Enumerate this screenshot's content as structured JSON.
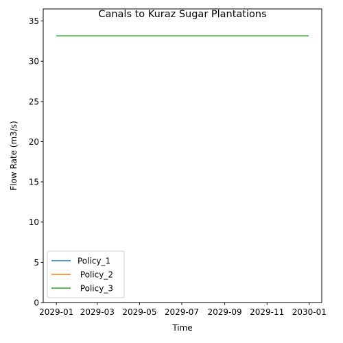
{
  "chart_data": {
    "type": "line",
    "title": "Canals to Kuraz Sugar Plantations",
    "xlabel": "Time",
    "ylabel": "Flow Rate (m3/s)",
    "x": [
      "2029-01-01",
      "2029-12-31"
    ],
    "xlim": [
      "2028-12-13",
      "2030-01-19"
    ],
    "ylim": [
      0,
      36.5
    ],
    "yticks": [
      0,
      5,
      10,
      15,
      20,
      25,
      30,
      35
    ],
    "xticks": [
      {
        "date": "2029-01-01",
        "label": "2029-01"
      },
      {
        "date": "2029-03-01",
        "label": "2029-03"
      },
      {
        "date": "2029-05-01",
        "label": "2029-05"
      },
      {
        "date": "2029-07-01",
        "label": "2029-07"
      },
      {
        "date": "2029-09-01",
        "label": "2029-09"
      },
      {
        "date": "2029-11-01",
        "label": "2029-11"
      },
      {
        "date": "2030-01-01",
        "label": "2030-01"
      }
    ],
    "series": [
      {
        "name": "Policy_1",
        "color": "#1f77b4",
        "values": [
          33.15,
          33.15
        ]
      },
      {
        "name": " Policy_2",
        "color": "#ff7f0e",
        "values": [
          33.15,
          33.15
        ]
      },
      {
        "name": " Policy_3",
        "color": "#2ca02c",
        "values": [
          33.15,
          33.15
        ]
      }
    ],
    "grid": false,
    "legend": "lower-left"
  }
}
